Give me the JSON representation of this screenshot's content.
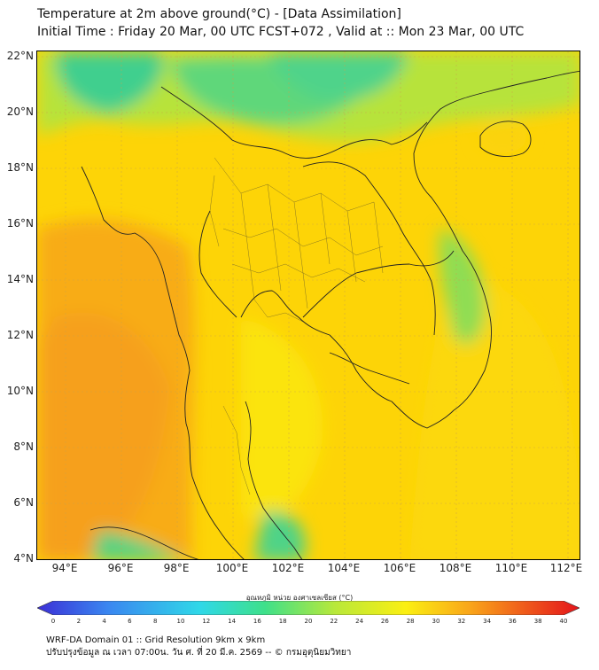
{
  "title": {
    "line1": "Temperature at 2m above ground(°C) - [Data Assimilation]",
    "line2": "Initial Time : Friday 20 Mar, 00 UTC FCST+072 , Valid at :: Mon 23 Mar, 00 UTC"
  },
  "map": {
    "lat_labels": [
      "22°N",
      "20°N",
      "18°N",
      "16°N",
      "14°N",
      "12°N",
      "10°N",
      "8°N",
      "6°N",
      "4°N"
    ],
    "lon_labels": [
      "94°E",
      "96°E",
      "98°E",
      "100°E",
      "102°E",
      "104°E",
      "106°E",
      "108°E",
      "110°E",
      "112°E"
    ],
    "field_colors": {
      "cool_green": "#3fd48a",
      "light_green": "#a6e34a",
      "yellow": "#f7e30b",
      "warm_yellow": "#fdd006",
      "orange": "#f8a617",
      "deep_orange": "#f39a1c",
      "border": "#222222"
    }
  },
  "colorbar": {
    "title": "อุณหภูมิ หน่วย องศาเซลเซียส (°C)",
    "ticks": [
      "0",
      "2",
      "4",
      "6",
      "8",
      "10",
      "12",
      "14",
      "16",
      "18",
      "20",
      "22",
      "24",
      "26",
      "28",
      "30",
      "32",
      "34",
      "36",
      "38",
      "40"
    ],
    "stops": [
      "#3b2fd6",
      "#3a86f0",
      "#2fd8e8",
      "#3ee08a",
      "#b9e83a",
      "#fbef12",
      "#f9a41a",
      "#ef5a1b",
      "#e4141b"
    ]
  },
  "footer": {
    "line1": "WRF-DA Domain 01 :: Grid Resolution 9km x 9km",
    "line2": "ปรับปรุงข้อมูล ณ เวลา 07:00น. วัน ศ. ที่ 20 มี.ค. 2569 -- © กรมอุตุนิยมวิทยา"
  }
}
